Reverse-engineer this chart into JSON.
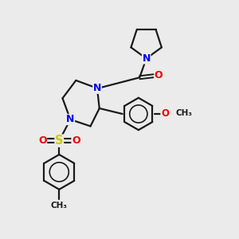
{
  "bg_color": "#ebebeb",
  "bond_color": "#1a1a1a",
  "N_color": "#0000ee",
  "O_color": "#ee0000",
  "S_color": "#cccc00",
  "lw": 1.6,
  "fs": 8.5,
  "xlim": [
    0,
    10
  ],
  "ylim": [
    0,
    10.5
  ]
}
